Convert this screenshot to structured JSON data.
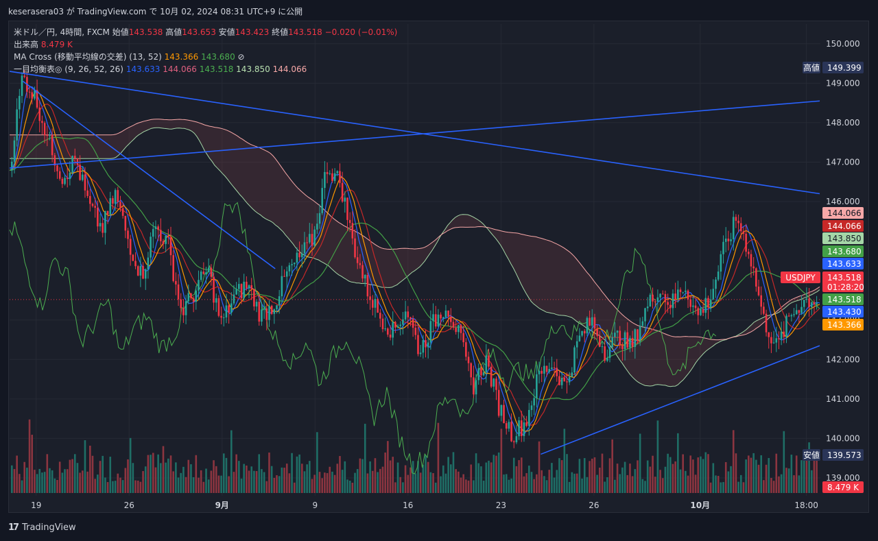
{
  "header": {
    "text": "keserasera03 が TradingView.com で 10月 02, 2024 08:31 UTC+9 に公開"
  },
  "legend": {
    "symbol": "米ドル／円, 4時間, FXCM",
    "o_label": "始値",
    "o": "143.538",
    "h_label": "高値",
    "h": "143.653",
    "l_label": "安値",
    "l": "143.423",
    "c_label": "終値",
    "c": "143.518",
    "chg": "−0.020 (−0.01%)",
    "vol_label": "出来高",
    "vol": "8.479 K",
    "ma_label": "MA Cross (移動平均線の交差) (13, 52)",
    "ma1": "143.366",
    "ma2": "143.680",
    "ma_icon": "⊘",
    "ich_label": "一目均衡表◎ (9, 26, 52, 26)",
    "ich1": "143.633",
    "ich2": "144.066",
    "ich3": "143.518",
    "ich4": "143.850",
    "ich5": "144.066"
  },
  "footer": {
    "brand": "TradingView"
  },
  "chart_data": {
    "type": "candlestick",
    "symbol": "USDJPY",
    "ylim": [
      138.6,
      150.5
    ],
    "y_ticks": [
      "150.000",
      "149.000",
      "148.000",
      "147.000",
      "146.000",
      "143.000",
      "142.000",
      "141.000",
      "140.000",
      "139.000"
    ],
    "x_ticks": [
      "19",
      "26",
      "9月",
      "9",
      "16",
      "23",
      "26",
      "10月",
      "18:00"
    ],
    "close_path": [
      146.8,
      149.2,
      148.6,
      147.5,
      146.6,
      147.1,
      145.9,
      145.3,
      146.2,
      145.0,
      144.1,
      145.4,
      144.9,
      143.2,
      143.7,
      144.3,
      142.9,
      143.6,
      143.9,
      143.1,
      143.4,
      144.2,
      144.6,
      145.1,
      146.9,
      146.5,
      144.9,
      143.8,
      143.1,
      142.7,
      143.3,
      142.2,
      142.9,
      143.4,
      142.6,
      141.3,
      142.0,
      140.8,
      140.1,
      140.4,
      141.6,
      141.9,
      141.3,
      142.5,
      143.0,
      142.2,
      142.6,
      142.3,
      143.2,
      143.8,
      143.4,
      143.9,
      143.1,
      143.6,
      144.8,
      145.6,
      144.6,
      143.0,
      142.3,
      143.1,
      143.5,
      143.52
    ],
    "lines": {
      "ma_fast": "143.366",
      "ma_slow": "143.680"
    },
    "price_badges": [
      {
        "label": "高値",
        "value": "149.399",
        "color": "#2a3558"
      },
      {
        "value": "144.066",
        "color": "#f7a8a8"
      },
      {
        "value": "144.066",
        "color": "#c62828"
      },
      {
        "value": "143.850",
        "color": "#a5d6a7"
      },
      {
        "value": "143.680",
        "color": "#43a047"
      },
      {
        "value": "143.633",
        "color": "#2962ff"
      },
      {
        "label": "USDJPY",
        "value": "143.518",
        "sub": "01:28:20",
        "color": "#f23645"
      },
      {
        "value": "143.518",
        "color": "#43a047"
      },
      {
        "value": "143.430",
        "color": "#2962ff"
      },
      {
        "value": "143.366",
        "color": "#ff9800"
      },
      {
        "label": "安値",
        "value": "139.573",
        "color": "#2a3558"
      },
      {
        "value": "8.479 K",
        "color": "#f23645"
      }
    ],
    "trendlines": [
      {
        "from": [
          0,
          149.3
        ],
        "to": [
          61,
          146.2
        ]
      },
      {
        "from": [
          0,
          146.85
        ],
        "to": [
          61,
          148.55
        ]
      },
      {
        "from": [
          1,
          149.05
        ],
        "to": [
          20,
          144.3
        ]
      },
      {
        "from": [
          40,
          139.6
        ],
        "to": [
          61,
          142.35
        ]
      }
    ]
  }
}
